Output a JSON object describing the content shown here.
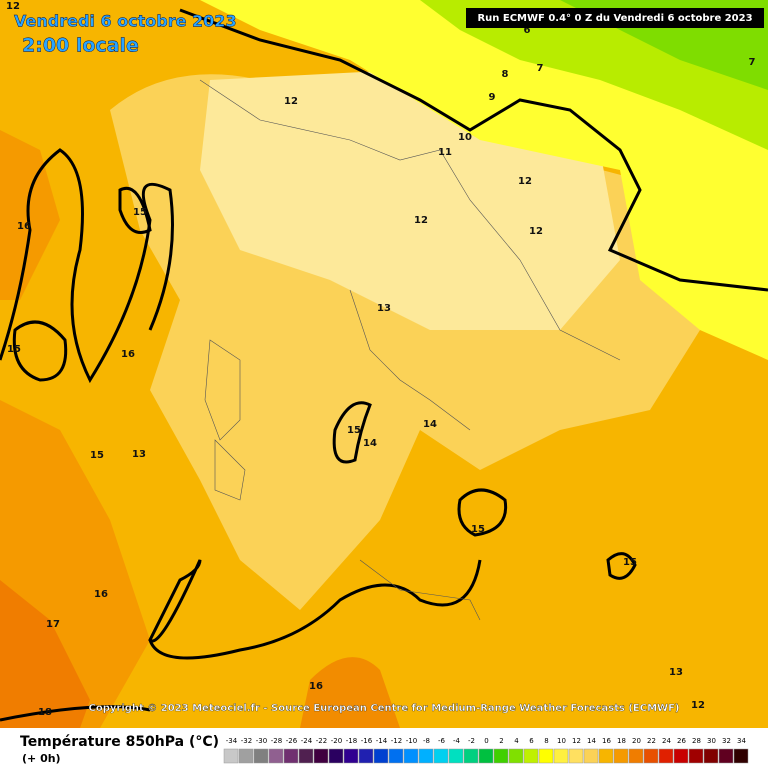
{
  "header": {
    "date": "Vendredi 6 octobre 2023",
    "time": "2:00 locale",
    "run": "Run ECMWF 0.4° 0 Z du Vendredi 6 octobre 2023"
  },
  "copyright": "Copyright © 2023 Meteociel.fr - Source European Centre for Medium-Range Weather Forecasts (ECMWF)",
  "legend": {
    "title": "Température 850hPa (°C)",
    "subtitle": "(+ 0h)",
    "scale": [
      -34,
      -32,
      -30,
      -28,
      -26,
      -24,
      -22,
      -20,
      -18,
      -16,
      -14,
      -12,
      -10,
      -8,
      -6,
      -4,
      -2,
      0,
      2,
      4,
      6,
      8,
      10,
      12,
      14,
      16,
      18,
      20,
      22,
      24,
      26,
      28,
      30,
      32,
      34
    ]
  },
  "contour_labels": [
    12,
    16,
    15,
    15,
    16,
    15,
    13,
    12,
    12,
    13,
    15,
    14,
    14,
    15,
    15,
    16,
    17,
    18,
    16,
    13,
    12,
    11,
    10,
    9,
    8,
    7,
    6,
    7,
    12,
    12
  ]
}
